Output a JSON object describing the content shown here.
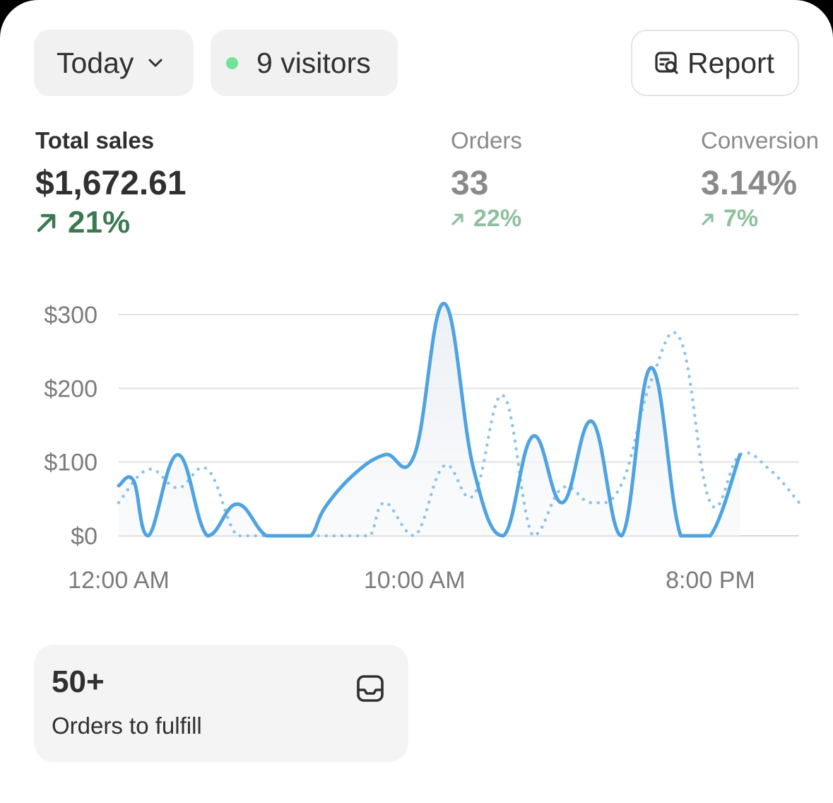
{
  "filters": {
    "date_range": "Today",
    "visitors": "9 visitors",
    "live_dot_color": "#6fe39a"
  },
  "report_button": {
    "label": "Report",
    "icon": "report-search-icon"
  },
  "metrics": {
    "total_sales": {
      "label": "Total sales",
      "value": "$1,672.61",
      "change": "21%",
      "trend": "up",
      "color": "#3b7a51"
    },
    "orders": {
      "label": "Orders",
      "value": "33",
      "change": "22%",
      "trend": "up"
    },
    "conversion": {
      "label": "Conversion",
      "value": "3.14%",
      "change": "7%",
      "trend": "up"
    }
  },
  "chart_data": {
    "type": "line",
    "x_tick_labels": [
      "12:00 AM",
      "10:00 AM",
      "8:00 PM"
    ],
    "y_tick_labels": [
      "$0",
      "$100",
      "$200",
      "$300"
    ],
    "ylim": [
      0,
      300
    ],
    "grid": true,
    "series": [
      {
        "style": "solid",
        "color": "#4fa3e0",
        "points": [
          [
            0.0,
            68
          ],
          [
            0.5,
            75
          ],
          [
            1,
            0
          ],
          [
            2,
            110
          ],
          [
            3,
            0
          ],
          [
            4,
            43
          ],
          [
            5,
            0
          ],
          [
            6,
            0
          ],
          [
            6.5,
            0
          ],
          [
            7,
            40
          ],
          [
            8,
            85
          ],
          [
            9,
            110
          ],
          [
            10,
            110
          ],
          [
            11,
            315
          ],
          [
            12,
            90
          ],
          [
            13,
            0
          ],
          [
            14,
            135
          ],
          [
            15,
            45
          ],
          [
            16,
            155
          ],
          [
            17,
            0
          ],
          [
            18,
            228
          ],
          [
            19,
            0
          ],
          [
            20,
            0
          ],
          [
            21,
            110
          ]
        ]
      },
      {
        "style": "dotted",
        "color": "#8cc4e8",
        "points": [
          [
            0,
            45
          ],
          [
            1,
            90
          ],
          [
            2,
            65
          ],
          [
            3,
            90
          ],
          [
            4,
            0
          ],
          [
            5,
            0
          ],
          [
            6,
            0
          ],
          [
            7,
            0
          ],
          [
            8,
            0
          ],
          [
            8.5,
            0
          ],
          [
            9,
            45
          ],
          [
            10,
            0
          ],
          [
            11,
            95
          ],
          [
            12,
            55
          ],
          [
            13,
            190
          ],
          [
            14,
            0
          ],
          [
            15,
            65
          ],
          [
            16,
            45
          ],
          [
            17,
            70
          ],
          [
            18,
            210
          ],
          [
            19,
            265
          ],
          [
            20,
            45
          ],
          [
            21,
            110
          ],
          [
            22,
            90
          ],
          [
            23,
            45
          ]
        ]
      }
    ]
  },
  "fulfill_card": {
    "count": "50+",
    "label": "Orders to fulfill",
    "icon": "inbox-icon"
  }
}
